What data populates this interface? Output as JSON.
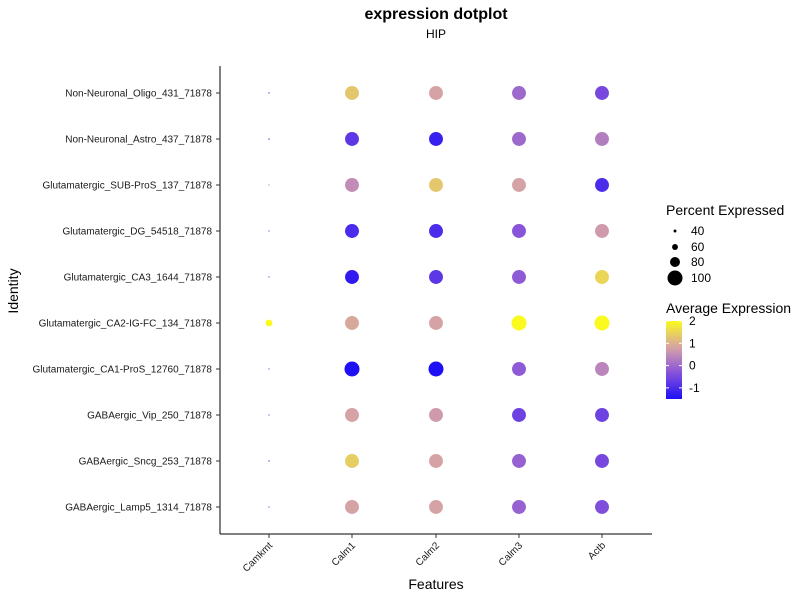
{
  "chart_data": {
    "type": "dotplot",
    "title": "expression dotplot",
    "subtitle": "HIP",
    "xlabel": "Features",
    "ylabel": "Identity",
    "features": [
      "Camkmt",
      "Calm1",
      "Calm2",
      "Calm3",
      "Actb"
    ],
    "identities": [
      "Non-Neuronal_Oligo_431_71878",
      "Non-Neuronal_Astro_437_71878",
      "Glutamatergic_SUB-ProS_137_71878",
      "Glutamatergic_DG_54518_71878",
      "Glutamatergic_CA3_1644_71878",
      "Glutamatergic_CA2-IG-FC_134_71878",
      "Glutamatergic_CA1-ProS_12760_71878",
      "GABAergic_Vip_250_71878",
      "GABAergic_Sncg_253_71878",
      "GABAergic_Lamp5_1314_71878"
    ],
    "average_expression": [
      [
        -0.5,
        1.3,
        0.8,
        0.0,
        -0.5
      ],
      [
        -0.5,
        -0.8,
        -1.2,
        0.0,
        0.3
      ],
      [
        0.8,
        0.5,
        1.3,
        0.8,
        -1.0
      ],
      [
        0.0,
        -1.0,
        -1.0,
        -0.3,
        0.7
      ],
      [
        0.0,
        -1.3,
        -0.8,
        -0.2,
        1.5
      ],
      [
        2.0,
        0.9,
        0.8,
        2.0,
        2.0
      ],
      [
        0.0,
        -1.5,
        -1.5,
        -0.2,
        0.4
      ],
      [
        0.0,
        0.8,
        0.7,
        -0.6,
        -0.6
      ],
      [
        -0.5,
        1.4,
        0.8,
        -0.1,
        -0.5
      ],
      [
        0.0,
        0.8,
        0.8,
        -0.1,
        -0.4
      ]
    ],
    "percent_expressed": [
      [
        20,
        96,
        96,
        96,
        96
      ],
      [
        26,
        96,
        96,
        96,
        96
      ],
      [
        24,
        96,
        96,
        96,
        96
      ],
      [
        20,
        96,
        96,
        96,
        96
      ],
      [
        20,
        96,
        96,
        96,
        96
      ],
      [
        65,
        96,
        96,
        100,
        100
      ],
      [
        20,
        100,
        100,
        96,
        96
      ],
      [
        20,
        96,
        96,
        96,
        96
      ],
      [
        24,
        96,
        96,
        96,
        96
      ],
      [
        20,
        96,
        96,
        96,
        96
      ]
    ],
    "size_legend": {
      "title": "Percent Expressed",
      "values": [
        40,
        60,
        80,
        100
      ],
      "labels": [
        "40",
        "60",
        "80",
        "100"
      ]
    },
    "color_legend": {
      "title": "Average Expression",
      "range": [
        -1.5,
        2
      ],
      "ticks": [
        -1,
        0,
        1,
        2
      ],
      "labels": [
        "-1",
        "0",
        "1",
        "2"
      ],
      "colors": [
        "#1e0ff5",
        "#8a55d9",
        "#d4a0a8",
        "#fafa1e"
      ]
    },
    "grid": false
  }
}
